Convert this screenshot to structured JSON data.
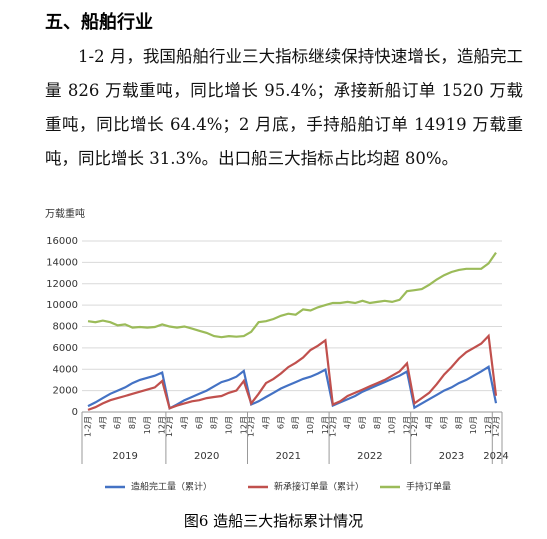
{
  "heading": "五、船舶行业",
  "paragraph": "1-2 月，我国船舶行业三大指标继续保持快速增长，造船完工量 826 万载重吨，同比增长 95.4%；承接新船订单 1520 万载重吨，同比增长 64.4%；2 月底，手持船舶订单 14919 万载重吨，同比增长 31.3%。出口船三大指标占比均超 80%。",
  "chart_data": {
    "type": "line",
    "y_label": "万载重吨",
    "ylim": [
      0,
      16000
    ],
    "yticks": [
      0,
      2000,
      4000,
      6000,
      8000,
      10000,
      12000,
      14000,
      16000
    ],
    "years": [
      "2019",
      "2020",
      "2021",
      "2022",
      "2023",
      "2024"
    ],
    "categories": [
      "1-2月",
      null,
      "4月",
      null,
      "6月",
      null,
      "8月",
      null,
      "10月",
      null,
      "12月",
      "1-2月",
      null,
      "4月",
      null,
      "6月",
      null,
      "8月",
      null,
      "10月",
      null,
      "12月",
      "1-2月",
      null,
      "4月",
      null,
      "6月",
      null,
      "8月",
      null,
      "10月",
      null,
      "12月",
      "1-2月",
      null,
      "4月",
      null,
      "6月",
      null,
      "8月",
      null,
      "10月",
      null,
      "12月",
      "1-2月",
      null,
      "4月",
      null,
      "6月",
      null,
      "8月",
      null,
      "10月",
      null,
      "12月",
      "1-2月"
    ],
    "series": [
      {
        "name": "造船完工量（累计）",
        "color": "#4472c4",
        "values": [
          550,
          900,
          1300,
          1700,
          2000,
          2300,
          2700,
          3000,
          3200,
          3400,
          3700,
          350,
          700,
          1100,
          1400,
          1700,
          2000,
          2400,
          2800,
          3000,
          3300,
          3850,
          700,
          1000,
          1400,
          1800,
          2200,
          2500,
          2800,
          3100,
          3300,
          3600,
          3970,
          600,
          900,
          1200,
          1500,
          1900,
          2200,
          2500,
          2800,
          3100,
          3400,
          3790,
          400,
          800,
          1200,
          1600,
          2000,
          2300,
          2700,
          3000,
          3400,
          3800,
          4230,
          826
        ]
      },
      {
        "name": "新承接订单量（累计）",
        "color": "#c0504d",
        "values": [
          200,
          450,
          800,
          1100,
          1300,
          1500,
          1700,
          1900,
          2100,
          2300,
          2900,
          350,
          600,
          800,
          1000,
          1100,
          1300,
          1400,
          1500,
          1800,
          2000,
          2900,
          800,
          1700,
          2700,
          3100,
          3600,
          4200,
          4600,
          5100,
          5800,
          6200,
          6700,
          700,
          1000,
          1500,
          1800,
          2100,
          2400,
          2700,
          3000,
          3400,
          3800,
          4550,
          800,
          1300,
          1800,
          2600,
          3500,
          4200,
          5000,
          5600,
          6000,
          6400,
          7120,
          1520
        ]
      },
      {
        "name": "手持订单量",
        "color": "#9bbb59",
        "values": [
          8500,
          8400,
          8550,
          8400,
          8100,
          8200,
          7900,
          7950,
          7900,
          7950,
          8200,
          8000,
          7900,
          8000,
          7800,
          7600,
          7400,
          7100,
          7000,
          7100,
          7050,
          7100,
          7500,
          8400,
          8500,
          8700,
          9000,
          9200,
          9100,
          9600,
          9500,
          9800,
          10000,
          10200,
          10200,
          10300,
          10200,
          10400,
          10200,
          10300,
          10400,
          10300,
          10500,
          11300,
          11400,
          11500,
          11900,
          12400,
          12800,
          13100,
          13300,
          13400,
          13400,
          13400,
          13900,
          14919
        ]
      }
    ],
    "grid": true
  },
  "caption": "图6 造船三大指标累计情况"
}
